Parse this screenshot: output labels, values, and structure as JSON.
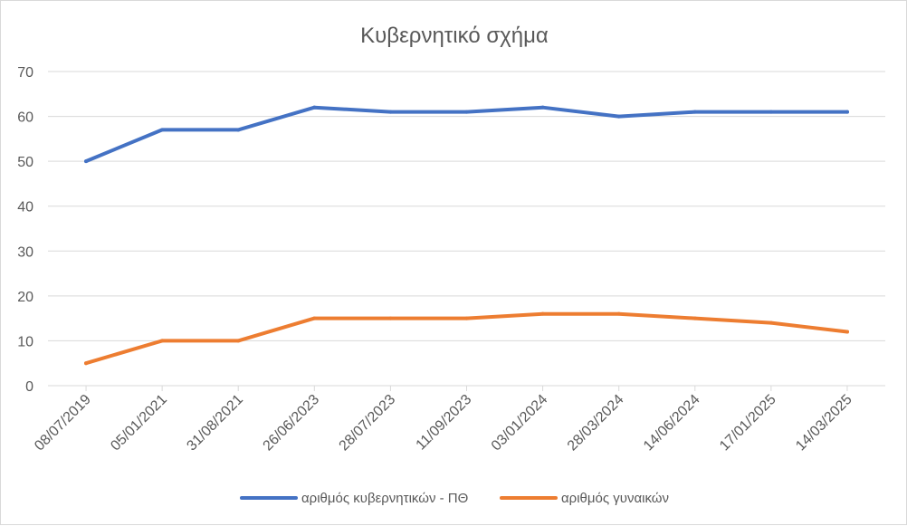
{
  "chart_data": {
    "type": "line",
    "title": "Κυβερνητικό σχήμα",
    "categories": [
      "08/07/2019",
      "05/01/2021",
      "31/08/2021",
      "26/06/2023",
      "28/07/2023",
      "11/09/2023",
      "03/01/2024",
      "28/03/2024",
      "14/06/2024",
      "17/01/2025",
      "14/03/2025"
    ],
    "series": [
      {
        "name": "αριθμός κυβερνητικών - ΠΘ",
        "color": "#4472c4",
        "values": [
          50,
          57,
          57,
          62,
          61,
          61,
          62,
          60,
          61,
          61,
          61
        ]
      },
      {
        "name": "αριθμός γυναικών",
        "color": "#ed7d31",
        "values": [
          5,
          10,
          10,
          15,
          15,
          15,
          16,
          16,
          15,
          14,
          12
        ]
      }
    ],
    "ylim": [
      0,
      70
    ],
    "yticks": [
      0,
      10,
      20,
      30,
      40,
      50,
      60,
      70
    ],
    "grid": true,
    "legend": "bottom"
  }
}
